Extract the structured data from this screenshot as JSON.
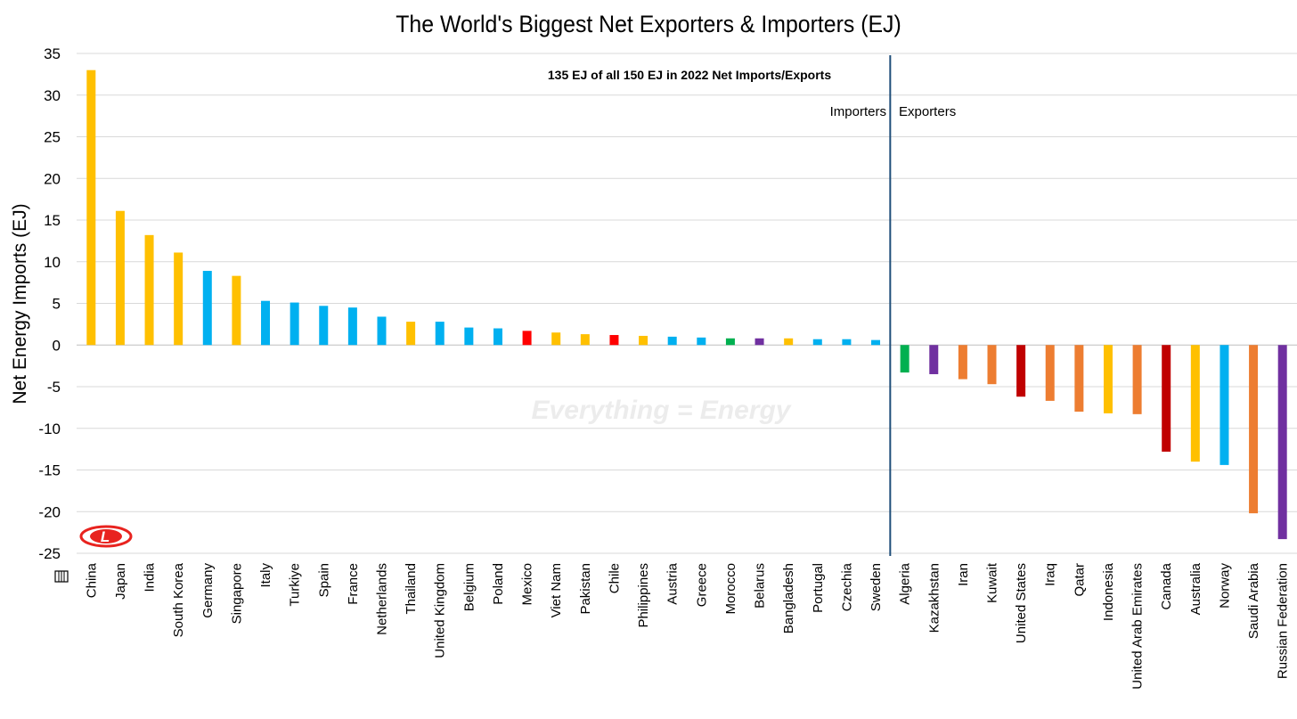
{
  "chart_data": {
    "type": "bar",
    "title": "The World's Biggest Net Exporters & Importers (EJ)",
    "ylabel": "Net Energy Imports (EJ)",
    "xlabel": "",
    "ylim": [
      -25,
      35
    ],
    "yticks": [
      35,
      30,
      25,
      20,
      15,
      10,
      5,
      0,
      -5,
      -10,
      -15,
      -20,
      -25
    ],
    "grid": true,
    "categories": [
      "China",
      "Japan",
      "India",
      "South Korea",
      "Germany",
      "Singapore",
      "Italy",
      "Turkiye",
      "Spain",
      "France",
      "Netherlands",
      "Thailand",
      "United Kingdom",
      "Belgium",
      "Poland",
      "Mexico",
      "Viet Nam",
      "Pakistan",
      "Chile",
      "Philippines",
      "Austria",
      "Greece",
      "Morocco",
      "Belarus",
      "Bangladesh",
      "Portugal",
      "Czechia",
      "Sweden",
      "Algeria",
      "Kazakhstan",
      "Iran",
      "Kuwait",
      "United States",
      "Iraq",
      "Qatar",
      "Indonesia",
      "United Arab Emirates",
      "Canada",
      "Australia",
      "Norway",
      "Saudi Arabia",
      "Russian Federation"
    ],
    "values": [
      33.0,
      16.1,
      13.2,
      11.1,
      8.9,
      8.3,
      5.3,
      5.1,
      4.7,
      4.5,
      3.4,
      2.8,
      2.8,
      2.1,
      2.0,
      1.7,
      1.5,
      1.3,
      1.2,
      1.1,
      1.0,
      0.9,
      0.8,
      0.8,
      0.8,
      0.7,
      0.7,
      0.6,
      -3.3,
      -3.5,
      -4.1,
      -4.7,
      -6.2,
      -6.7,
      -8.0,
      -8.2,
      -8.3,
      -12.8,
      -14.0,
      -14.4,
      -20.2,
      -23.3
    ],
    "colors": [
      "#FFC000",
      "#FFC000",
      "#FFC000",
      "#FFC000",
      "#00B0F0",
      "#FFC000",
      "#00B0F0",
      "#00B0F0",
      "#00B0F0",
      "#00B0F0",
      "#00B0F0",
      "#FFC000",
      "#00B0F0",
      "#00B0F0",
      "#00B0F0",
      "#FF0000",
      "#FFC000",
      "#FFC000",
      "#FF0000",
      "#FFC000",
      "#00B0F0",
      "#00B0F0",
      "#00B050",
      "#7030A0",
      "#FFC000",
      "#00B0F0",
      "#00B0F0",
      "#00B0F0",
      "#00B050",
      "#7030A0",
      "#ED7D31",
      "#ED7D31",
      "#C00000",
      "#ED7D31",
      "#ED7D31",
      "#FFC000",
      "#ED7D31",
      "#C00000",
      "#FFC000",
      "#00B0F0",
      "#ED7D31",
      "#7030A0"
    ],
    "annotations": {
      "note": "135 EJ of all 150 EJ in 2022 Net Imports/Exports",
      "importers": "Importers",
      "exporters": "Exporters"
    },
    "divider_after_category": "Sweden",
    "watermark": "Everything = Energy"
  },
  "colors": {
    "grid": "#d9d9d9",
    "divider": "#1F4E79",
    "logo_red": "#E8231F"
  },
  "logo": {
    "letter": "L"
  }
}
